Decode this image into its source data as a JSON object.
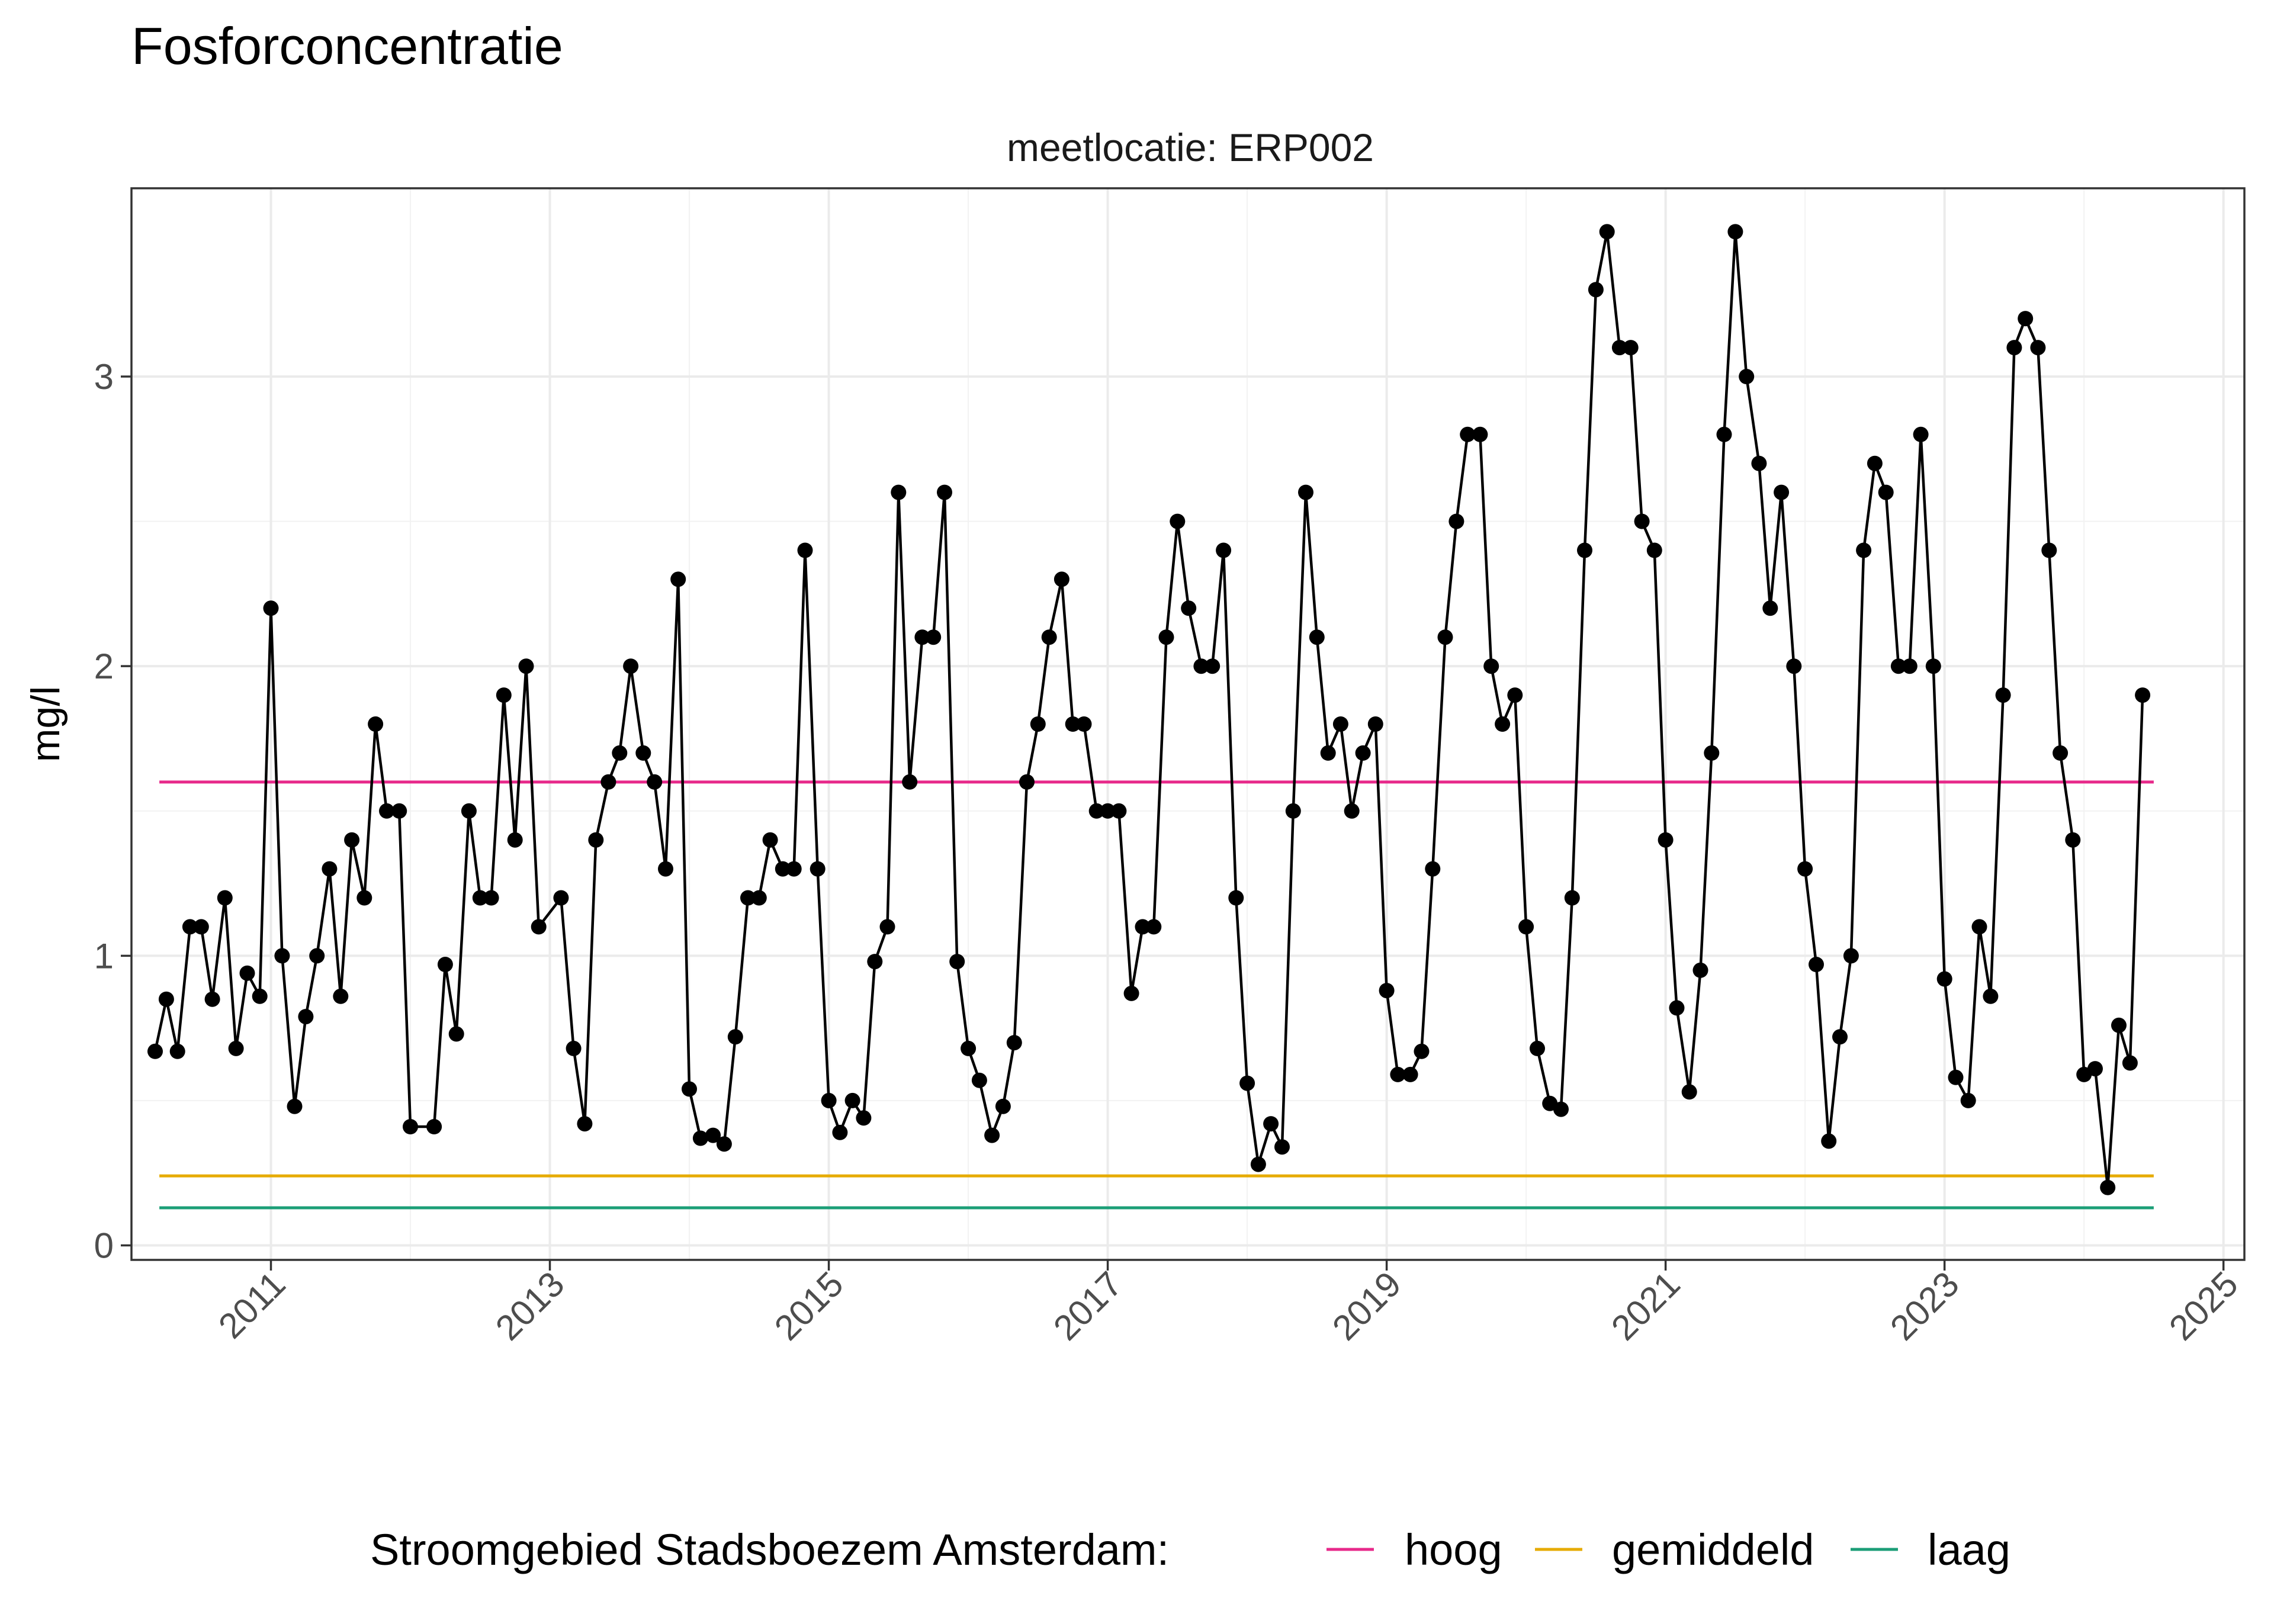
{
  "chart_data": {
    "type": "line",
    "title": "Fosforconcentratie",
    "facet_label": "meetlocatie: ERP002",
    "ylabel": "mg/l",
    "xlabel": "",
    "xlim": [
      2010.0,
      2025.15
    ],
    "ylim": [
      -0.05,
      3.65
    ],
    "y_ticks": [
      0,
      1,
      2,
      3
    ],
    "x_ticks": [
      2011,
      2013,
      2015,
      2017,
      2019,
      2021,
      2023,
      2025
    ],
    "grid": true,
    "legend": {
      "title": "Stroomgebied Stadsboezem Amsterdam:",
      "position": "bottom",
      "entries": [
        {
          "label": "hoog",
          "color": "#E7298A",
          "value": 1.6
        },
        {
          "label": "gemiddeld",
          "color": "#E6AB02",
          "value": 0.24
        },
        {
          "label": "laag",
          "color": "#1B9E77",
          "value": 0.13
        }
      ]
    },
    "reference_x_range": [
      2010.2,
      2024.5
    ],
    "series": [
      {
        "color": "#000000",
        "x": [
          2010.17,
          2010.25,
          2010.33,
          2010.42,
          2010.5,
          2010.58,
          2010.67,
          2010.75,
          2010.83,
          2010.92,
          2011.0,
          2011.08,
          2011.17,
          2011.25,
          2011.33,
          2011.42,
          2011.5,
          2011.58,
          2011.67,
          2011.75,
          2011.83,
          2011.92,
          2012.0,
          2012.17,
          2012.25,
          2012.33,
          2012.42,
          2012.5,
          2012.58,
          2012.67,
          2012.75,
          2012.83,
          2012.92,
          2013.08,
          2013.17,
          2013.25,
          2013.33,
          2013.42,
          2013.5,
          2013.58,
          2013.67,
          2013.75,
          2013.83,
          2013.92,
          2014.0,
          2014.08,
          2014.17,
          2014.25,
          2014.33,
          2014.42,
          2014.5,
          2014.58,
          2014.67,
          2014.75,
          2014.83,
          2014.92,
          2015.0,
          2015.08,
          2015.17,
          2015.25,
          2015.33,
          2015.42,
          2015.5,
          2015.58,
          2015.67,
          2015.75,
          2015.83,
          2015.92,
          2016.0,
          2016.08,
          2016.17,
          2016.25,
          2016.33,
          2016.42,
          2016.5,
          2016.58,
          2016.67,
          2016.75,
          2016.83,
          2016.92,
          2017.0,
          2017.08,
          2017.17,
          2017.25,
          2017.33,
          2017.42,
          2017.5,
          2017.58,
          2017.67,
          2017.75,
          2017.83,
          2017.92,
          2018.0,
          2018.08,
          2018.17,
          2018.25,
          2018.33,
          2018.42,
          2018.5,
          2018.58,
          2018.67,
          2018.75,
          2018.83,
          2018.92,
          2019.0,
          2019.08,
          2019.17,
          2019.25,
          2019.33,
          2019.42,
          2019.5,
          2019.58,
          2019.67,
          2019.75,
          2019.83,
          2019.92,
          2020.0,
          2020.08,
          2020.17,
          2020.25,
          2020.33,
          2020.42,
          2020.5,
          2020.58,
          2020.67,
          2020.75,
          2020.83,
          2020.92,
          2021.0,
          2021.08,
          2021.17,
          2021.25,
          2021.33,
          2021.42,
          2021.5,
          2021.58,
          2021.67,
          2021.75,
          2021.83,
          2021.92,
          2022.0,
          2022.08,
          2022.17,
          2022.25,
          2022.33,
          2022.42,
          2022.5,
          2022.58,
          2022.67,
          2022.75,
          2022.83,
          2022.92,
          2023.0,
          2023.08,
          2023.17,
          2023.25,
          2023.33,
          2023.42,
          2023.5,
          2023.58,
          2023.67,
          2023.75,
          2023.83,
          2023.92,
          2024.0,
          2024.08,
          2024.17,
          2024.25,
          2024.33,
          2024.42
        ],
        "y": [
          0.67,
          0.85,
          0.67,
          1.1,
          1.1,
          0.85,
          1.2,
          0.68,
          0.94,
          0.86,
          2.2,
          1.0,
          0.48,
          0.79,
          1.0,
          1.3,
          0.86,
          1.4,
          1.2,
          1.8,
          1.5,
          1.5,
          0.41,
          0.41,
          0.97,
          0.73,
          1.5,
          1.2,
          1.2,
          1.9,
          1.4,
          2.0,
          1.1,
          1.2,
          0.68,
          0.42,
          1.4,
          1.6,
          1.7,
          2.0,
          1.7,
          1.6,
          1.3,
          2.3,
          0.54,
          0.37,
          0.38,
          0.35,
          0.72,
          1.2,
          1.2,
          1.4,
          1.3,
          1.3,
          2.4,
          1.3,
          0.5,
          0.39,
          0.5,
          0.44,
          0.98,
          1.1,
          2.6,
          1.6,
          2.1,
          2.1,
          2.6,
          0.98,
          0.68,
          0.57,
          0.38,
          0.48,
          0.7,
          1.6,
          1.8,
          2.1,
          2.3,
          1.8,
          1.8,
          1.5,
          1.5,
          1.5,
          0.87,
          1.1,
          1.1,
          2.1,
          2.5,
          2.2,
          2.0,
          2.0,
          2.4,
          1.2,
          0.56,
          0.28,
          0.42,
          0.34,
          1.5,
          2.6,
          2.1,
          1.7,
          1.8,
          1.5,
          1.7,
          1.8,
          0.88,
          0.59,
          0.59,
          0.67,
          1.3,
          2.1,
          2.5,
          2.8,
          2.8,
          2.0,
          1.8,
          1.9,
          1.1,
          0.68,
          0.49,
          0.47,
          1.2,
          2.4,
          3.3,
          3.5,
          3.1,
          3.1,
          2.5,
          2.4,
          1.4,
          0.82,
          0.53,
          0.95,
          1.7,
          2.8,
          3.5,
          3.0,
          2.7,
          2.2,
          2.6,
          2.0,
          1.3,
          0.97,
          0.36,
          0.72,
          1.0,
          2.4,
          2.7,
          2.6,
          2.0,
          2.0,
          2.8,
          2.0,
          0.92,
          0.58,
          0.5,
          1.1,
          0.86,
          1.9,
          3.1,
          3.2,
          3.1,
          2.4,
          1.7,
          1.4,
          0.59,
          0.61,
          0.2,
          0.76,
          0.63,
          1.9
        ]
      }
    ]
  }
}
